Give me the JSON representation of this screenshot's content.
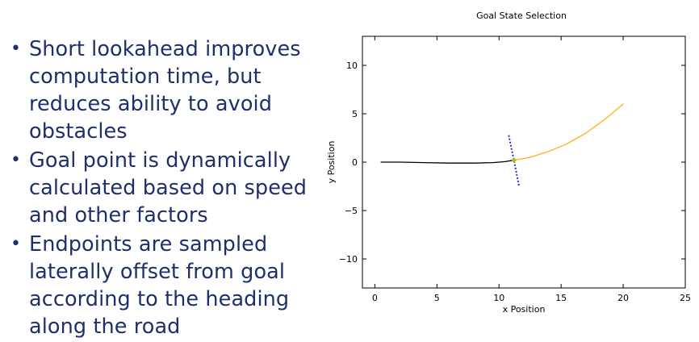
{
  "slide": {
    "bullets": [
      "Short lookahead improves computation time, but reduces ability to avoid obstacles",
      "Goal point is dynamically calculated based on speed and other factors",
      "Endpoints are sampled laterally offset from goal according to the heading along the road"
    ],
    "text_color": "#1f2f6b"
  },
  "chart_data": {
    "type": "line",
    "title": "Goal State Selection",
    "xlabel": "x Position",
    "ylabel": "y Position",
    "xlim": [
      -1,
      25
    ],
    "ylim": [
      -13,
      13
    ],
    "xticks": [
      0,
      5,
      10,
      15,
      20,
      25
    ],
    "yticks": [
      -10,
      -5,
      0,
      5,
      10
    ],
    "grid": false,
    "series": [
      {
        "color": "#000000",
        "style": "solid",
        "x": [
          0.5,
          2,
          4,
          6,
          8,
          9.5,
          10.5,
          11.2
        ],
        "y": [
          0.0,
          0.0,
          -0.05,
          -0.1,
          -0.1,
          -0.05,
          0.05,
          0.2
        ]
      },
      {
        "color": "#ffb11b",
        "style": "solid",
        "x": [
          11.2,
          12.5,
          14,
          15.5,
          17,
          18.5,
          20
        ],
        "y": [
          0.2,
          0.5,
          1.1,
          1.9,
          3.0,
          4.4,
          6.0
        ]
      },
      {
        "color": "#2a2acc",
        "style": "dotted",
        "x": [
          10.8,
          11.0,
          11.2,
          11.4,
          11.6
        ],
        "y": [
          2.7,
          1.4,
          0.2,
          -1.1,
          -2.4
        ]
      }
    ],
    "points": [
      {
        "x": 11.2,
        "y": 0.2,
        "color": "#b8b800"
      }
    ]
  }
}
